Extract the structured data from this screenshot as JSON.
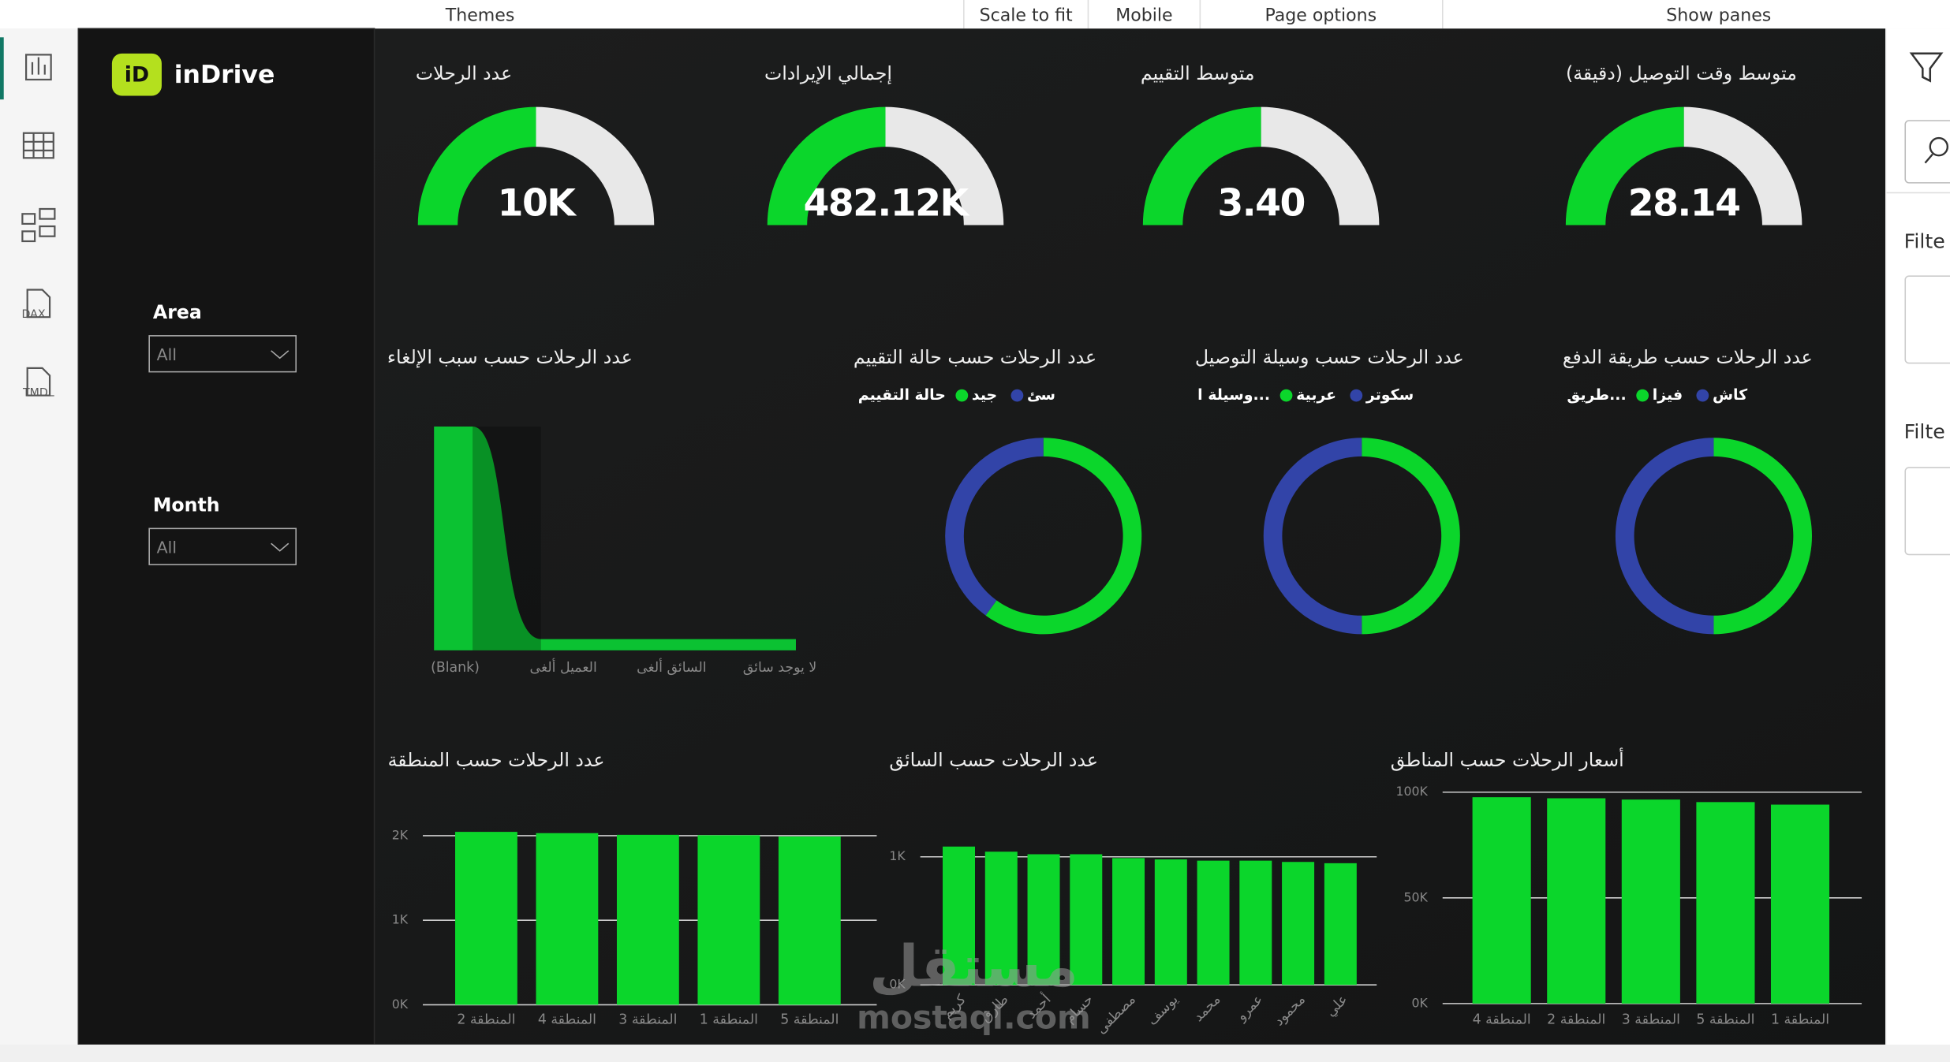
{
  "toolbar": {
    "items": [
      "Themes",
      "Scale to fit",
      "Mobile",
      "Page options",
      "Show panes"
    ]
  },
  "sidebar": {
    "labels": [
      "DAX",
      "TMDL"
    ]
  },
  "logo": {
    "icon": "iD",
    "text": "inDrive"
  },
  "slicers": [
    {
      "label": "Area",
      "value": "All"
    },
    {
      "label": "Month",
      "value": "All"
    }
  ],
  "gauges": [
    {
      "title": "عدد الرحلات",
      "value_label": "10K"
    },
    {
      "title": "إجمالي الإيرادات",
      "value_label": "482.12K"
    },
    {
      "title": "متوسط التقييم",
      "value_label": "3.40"
    },
    {
      "title": "متوسط وقت التوصيل (دقيقة)",
      "value_label": "28.14"
    }
  ],
  "cancel_chart": {
    "type": "area",
    "title": "عدد الرحلات حسب سبب الإلغاء",
    "categories": [
      "(Blank)",
      "العميل ألغى",
      "السائق ألغى",
      "لا يوجد سائق"
    ],
    "values": [
      9500,
      480,
      480,
      480
    ],
    "color": "#0bc232"
  },
  "donuts": [
    {
      "type": "donut",
      "title": "عدد الرحلات حسب حالة التقييم",
      "legend_title": "حالة التقييم",
      "series": [
        {
          "name": "جيد",
          "color": "#0bd62b",
          "value": 6000
        },
        {
          "name": "سئ",
          "color": "#3244a8",
          "value": 4000
        }
      ]
    },
    {
      "type": "donut",
      "title": "عدد الرحلات حسب وسيلة التوصيل",
      "legend_title": "وسيلة ا...",
      "series": [
        {
          "name": "عربية",
          "color": "#0bd62b",
          "value": 5000
        },
        {
          "name": "سكوتر",
          "color": "#3244a8",
          "value": 5000
        }
      ]
    },
    {
      "type": "donut",
      "title": "عدد الرحلات حسب طريقة الدفع",
      "legend_title": "طريق...",
      "series": [
        {
          "name": "فيزا",
          "color": "#0bd62b",
          "value": 5000
        },
        {
          "name": "كاش",
          "color": "#3244a8",
          "value": 5000
        }
      ]
    }
  ],
  "bar_charts": [
    {
      "type": "bar",
      "title": "عدد الرحلات حسب المنطقة",
      "categories": [
        "المنطقة 2",
        "المنطقة 4",
        "المنطقة 3",
        "المنطقة 1",
        "المنطقة 5"
      ],
      "values": [
        2045,
        2030,
        2010,
        2005,
        1990
      ],
      "color": "#0bd62b",
      "ylim": [
        0,
        2100
      ],
      "yticks": [
        {
          "value": 0,
          "label": "0K"
        },
        {
          "value": 1000,
          "label": "1K"
        },
        {
          "value": 2000,
          "label": "2K"
        }
      ],
      "grid": true
    },
    {
      "type": "bar",
      "title": "عدد الرحلات حسب السائق",
      "categories": [
        "كريم",
        "طارق",
        "أحمد",
        "حسام",
        "مصطفى",
        "يوسف",
        "محمد",
        "عمرو",
        "محمود",
        "علي"
      ],
      "values": [
        1080,
        1040,
        1020,
        1020,
        990,
        980,
        970,
        970,
        960,
        950
      ],
      "color": "#0bd62b",
      "ylim": [
        0,
        1100
      ],
      "yticks": [
        {
          "value": 0,
          "label": "0K"
        },
        {
          "value": 1000,
          "label": "1K"
        }
      ],
      "grid": true
    },
    {
      "type": "bar",
      "title": "أسعار الرحلات حسب المناطق",
      "categories": [
        "المنطقة 4",
        "المنطقة 2",
        "المنطقة 3",
        "المنطقة 5",
        "المنطقة 1"
      ],
      "values": [
        97600,
        97100,
        96500,
        95300,
        94100
      ],
      "color": "#0bd62b",
      "ylim": [
        0,
        100000
      ],
      "yticks": [
        {
          "value": 0,
          "label": "0K"
        },
        {
          "value": 50000,
          "label": "50K"
        },
        {
          "value": 100000,
          "label": "100K"
        }
      ],
      "grid": true
    }
  ],
  "watermark": {
    "arabic": "مستقل",
    "latin": "mostaql.com"
  },
  "right_pane": {
    "labels": [
      "Filte",
      "Filte"
    ]
  }
}
